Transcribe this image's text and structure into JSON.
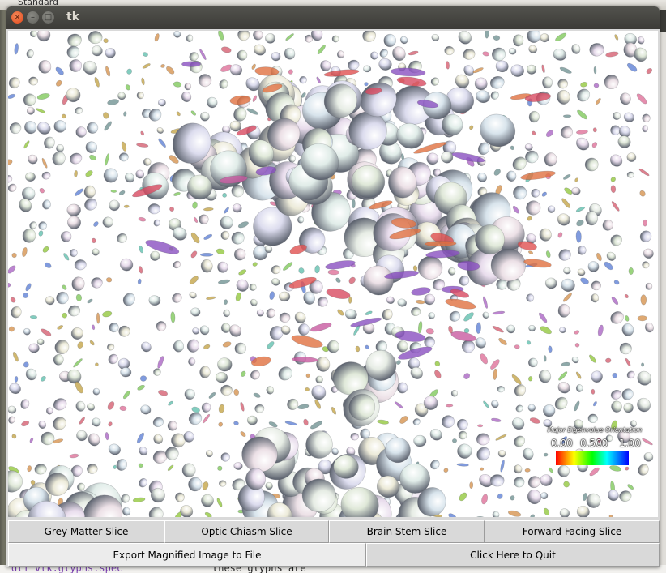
{
  "desktop": {
    "top_label": "Standard",
    "bottom_left_text": "dti_vtk.glyphs.spec",
    "bottom_mid_text": "these glyphs are"
  },
  "window": {
    "title": "tk"
  },
  "legend": {
    "title": "Major Eigenvalue Orientation",
    "ticks": [
      "0.00",
      "0.500",
      "1.00"
    ]
  },
  "buttons": {
    "row1": [
      "Grey Matter Slice",
      "Optic Chiasm Slice",
      "Brain Stem Slice",
      "Forward Facing Slice"
    ],
    "export": "Export Magnified Image to File",
    "quit": "Click Here to Quit"
  },
  "colors": {
    "titlebar": "#3c3b37",
    "close": "#e0461a",
    "viewport_bg": "#ffffff",
    "button_bg": "#d9d9d9"
  }
}
